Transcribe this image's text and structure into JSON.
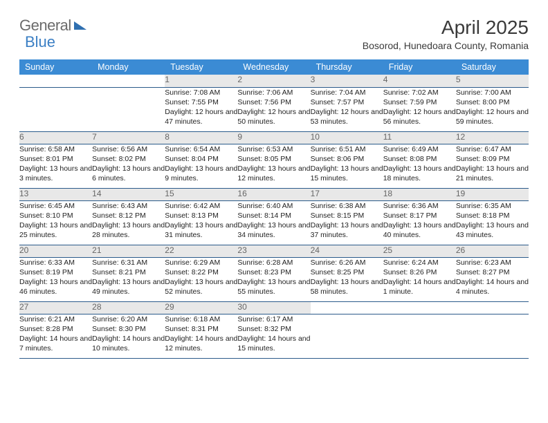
{
  "logo": {
    "text1": "General",
    "text2": "Blue"
  },
  "title": "April 2025",
  "location": "Bosorod, Hunedoara County, Romania",
  "colors": {
    "header_bg": "#3b8bd4",
    "header_text": "#ffffff",
    "daynum_bg": "#e8e8e8",
    "daynum_text": "#666666",
    "cell_border": "#2a5a8a",
    "body_text": "#222222",
    "logo_general": "#6b6b6b",
    "logo_blue": "#3b7fc4"
  },
  "weekdays": [
    "Sunday",
    "Monday",
    "Tuesday",
    "Wednesday",
    "Thursday",
    "Friday",
    "Saturday"
  ],
  "weeks": [
    [
      null,
      null,
      {
        "n": "1",
        "sr": "Sunrise: 7:08 AM",
        "ss": "Sunset: 7:55 PM",
        "dl": "Daylight: 12 hours and 47 minutes."
      },
      {
        "n": "2",
        "sr": "Sunrise: 7:06 AM",
        "ss": "Sunset: 7:56 PM",
        "dl": "Daylight: 12 hours and 50 minutes."
      },
      {
        "n": "3",
        "sr": "Sunrise: 7:04 AM",
        "ss": "Sunset: 7:57 PM",
        "dl": "Daylight: 12 hours and 53 minutes."
      },
      {
        "n": "4",
        "sr": "Sunrise: 7:02 AM",
        "ss": "Sunset: 7:59 PM",
        "dl": "Daylight: 12 hours and 56 minutes."
      },
      {
        "n": "5",
        "sr": "Sunrise: 7:00 AM",
        "ss": "Sunset: 8:00 PM",
        "dl": "Daylight: 12 hours and 59 minutes."
      }
    ],
    [
      {
        "n": "6",
        "sr": "Sunrise: 6:58 AM",
        "ss": "Sunset: 8:01 PM",
        "dl": "Daylight: 13 hours and 3 minutes."
      },
      {
        "n": "7",
        "sr": "Sunrise: 6:56 AM",
        "ss": "Sunset: 8:02 PM",
        "dl": "Daylight: 13 hours and 6 minutes."
      },
      {
        "n": "8",
        "sr": "Sunrise: 6:54 AM",
        "ss": "Sunset: 8:04 PM",
        "dl": "Daylight: 13 hours and 9 minutes."
      },
      {
        "n": "9",
        "sr": "Sunrise: 6:53 AM",
        "ss": "Sunset: 8:05 PM",
        "dl": "Daylight: 13 hours and 12 minutes."
      },
      {
        "n": "10",
        "sr": "Sunrise: 6:51 AM",
        "ss": "Sunset: 8:06 PM",
        "dl": "Daylight: 13 hours and 15 minutes."
      },
      {
        "n": "11",
        "sr": "Sunrise: 6:49 AM",
        "ss": "Sunset: 8:08 PM",
        "dl": "Daylight: 13 hours and 18 minutes."
      },
      {
        "n": "12",
        "sr": "Sunrise: 6:47 AM",
        "ss": "Sunset: 8:09 PM",
        "dl": "Daylight: 13 hours and 21 minutes."
      }
    ],
    [
      {
        "n": "13",
        "sr": "Sunrise: 6:45 AM",
        "ss": "Sunset: 8:10 PM",
        "dl": "Daylight: 13 hours and 25 minutes."
      },
      {
        "n": "14",
        "sr": "Sunrise: 6:43 AM",
        "ss": "Sunset: 8:12 PM",
        "dl": "Daylight: 13 hours and 28 minutes."
      },
      {
        "n": "15",
        "sr": "Sunrise: 6:42 AM",
        "ss": "Sunset: 8:13 PM",
        "dl": "Daylight: 13 hours and 31 minutes."
      },
      {
        "n": "16",
        "sr": "Sunrise: 6:40 AM",
        "ss": "Sunset: 8:14 PM",
        "dl": "Daylight: 13 hours and 34 minutes."
      },
      {
        "n": "17",
        "sr": "Sunrise: 6:38 AM",
        "ss": "Sunset: 8:15 PM",
        "dl": "Daylight: 13 hours and 37 minutes."
      },
      {
        "n": "18",
        "sr": "Sunrise: 6:36 AM",
        "ss": "Sunset: 8:17 PM",
        "dl": "Daylight: 13 hours and 40 minutes."
      },
      {
        "n": "19",
        "sr": "Sunrise: 6:35 AM",
        "ss": "Sunset: 8:18 PM",
        "dl": "Daylight: 13 hours and 43 minutes."
      }
    ],
    [
      {
        "n": "20",
        "sr": "Sunrise: 6:33 AM",
        "ss": "Sunset: 8:19 PM",
        "dl": "Daylight: 13 hours and 46 minutes."
      },
      {
        "n": "21",
        "sr": "Sunrise: 6:31 AM",
        "ss": "Sunset: 8:21 PM",
        "dl": "Daylight: 13 hours and 49 minutes."
      },
      {
        "n": "22",
        "sr": "Sunrise: 6:29 AM",
        "ss": "Sunset: 8:22 PM",
        "dl": "Daylight: 13 hours and 52 minutes."
      },
      {
        "n": "23",
        "sr": "Sunrise: 6:28 AM",
        "ss": "Sunset: 8:23 PM",
        "dl": "Daylight: 13 hours and 55 minutes."
      },
      {
        "n": "24",
        "sr": "Sunrise: 6:26 AM",
        "ss": "Sunset: 8:25 PM",
        "dl": "Daylight: 13 hours and 58 minutes."
      },
      {
        "n": "25",
        "sr": "Sunrise: 6:24 AM",
        "ss": "Sunset: 8:26 PM",
        "dl": "Daylight: 14 hours and 1 minute."
      },
      {
        "n": "26",
        "sr": "Sunrise: 6:23 AM",
        "ss": "Sunset: 8:27 PM",
        "dl": "Daylight: 14 hours and 4 minutes."
      }
    ],
    [
      {
        "n": "27",
        "sr": "Sunrise: 6:21 AM",
        "ss": "Sunset: 8:28 PM",
        "dl": "Daylight: 14 hours and 7 minutes."
      },
      {
        "n": "28",
        "sr": "Sunrise: 6:20 AM",
        "ss": "Sunset: 8:30 PM",
        "dl": "Daylight: 14 hours and 10 minutes."
      },
      {
        "n": "29",
        "sr": "Sunrise: 6:18 AM",
        "ss": "Sunset: 8:31 PM",
        "dl": "Daylight: 14 hours and 12 minutes."
      },
      {
        "n": "30",
        "sr": "Sunrise: 6:17 AM",
        "ss": "Sunset: 8:32 PM",
        "dl": "Daylight: 14 hours and 15 minutes."
      },
      null,
      null,
      null
    ]
  ]
}
